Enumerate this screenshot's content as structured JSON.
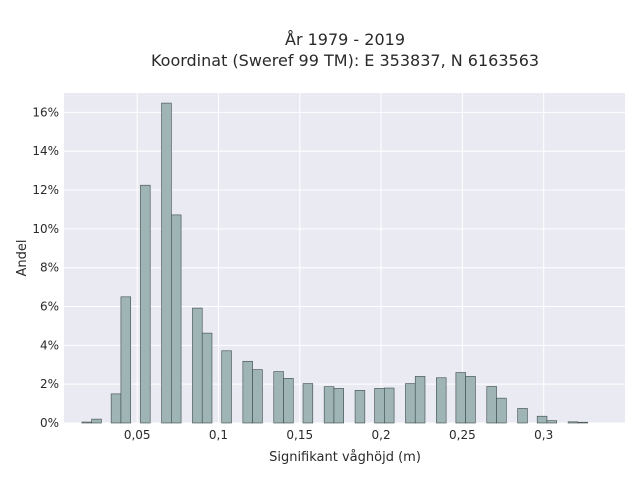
{
  "chart_data": {
    "type": "bar",
    "title": [
      "År 1979 - 2019",
      "Koordinat (Sweref 99 TM): E 353837, N 6163563"
    ],
    "xlabel": "Signifikant våghöjd (m)",
    "ylabel": "Andel",
    "xlim": [
      0.005,
      0.35
    ],
    "ylim": [
      0,
      0.17
    ],
    "bar_width": 0.006,
    "xticks": [
      {
        "value": 0.05,
        "label": "0,05"
      },
      {
        "value": 0.1,
        "label": "0,1"
      },
      {
        "value": 0.15,
        "label": "0,15"
      },
      {
        "value": 0.2,
        "label": "0,2"
      },
      {
        "value": 0.25,
        "label": "0,25"
      },
      {
        "value": 0.3,
        "label": "0,3"
      }
    ],
    "yticks": [
      {
        "value": 0.0,
        "label": "0%"
      },
      {
        "value": 0.02,
        "label": "2%"
      },
      {
        "value": 0.04,
        "label": "4%"
      },
      {
        "value": 0.06,
        "label": "6%"
      },
      {
        "value": 0.08,
        "label": "8%"
      },
      {
        "value": 0.1,
        "label": "10%"
      },
      {
        "value": 0.12,
        "label": "12%"
      },
      {
        "value": 0.14,
        "label": "14%"
      },
      {
        "value": 0.16,
        "label": "16%"
      }
    ],
    "grid": true,
    "x": [
      0.019,
      0.025,
      0.037,
      0.043,
      0.055,
      0.068,
      0.074,
      0.087,
      0.093,
      0.105,
      0.118,
      0.124,
      0.137,
      0.143,
      0.155,
      0.168,
      0.174,
      0.187,
      0.199,
      0.205,
      0.218,
      0.224,
      0.237,
      0.249,
      0.255,
      0.268,
      0.274,
      0.287,
      0.299,
      0.305,
      0.318,
      0.324
    ],
    "values": [
      0.0005,
      0.002,
      0.015,
      0.065,
      0.1225,
      0.1648,
      0.1072,
      0.0592,
      0.0463,
      0.0372,
      0.0318,
      0.0275,
      0.0265,
      0.023,
      0.0203,
      0.0187,
      0.0178,
      0.0168,
      0.0178,
      0.018,
      0.0203,
      0.024,
      0.0233,
      0.026,
      0.024,
      0.0188,
      0.0128,
      0.0075,
      0.0035,
      0.0012,
      0.0006,
      0.0004
    ],
    "colors": {
      "background": "#eaeaf2",
      "bar_fill": "#9fb5b5",
      "bar_edge": "#3c4a4a",
      "grid": "#ffffff"
    }
  }
}
